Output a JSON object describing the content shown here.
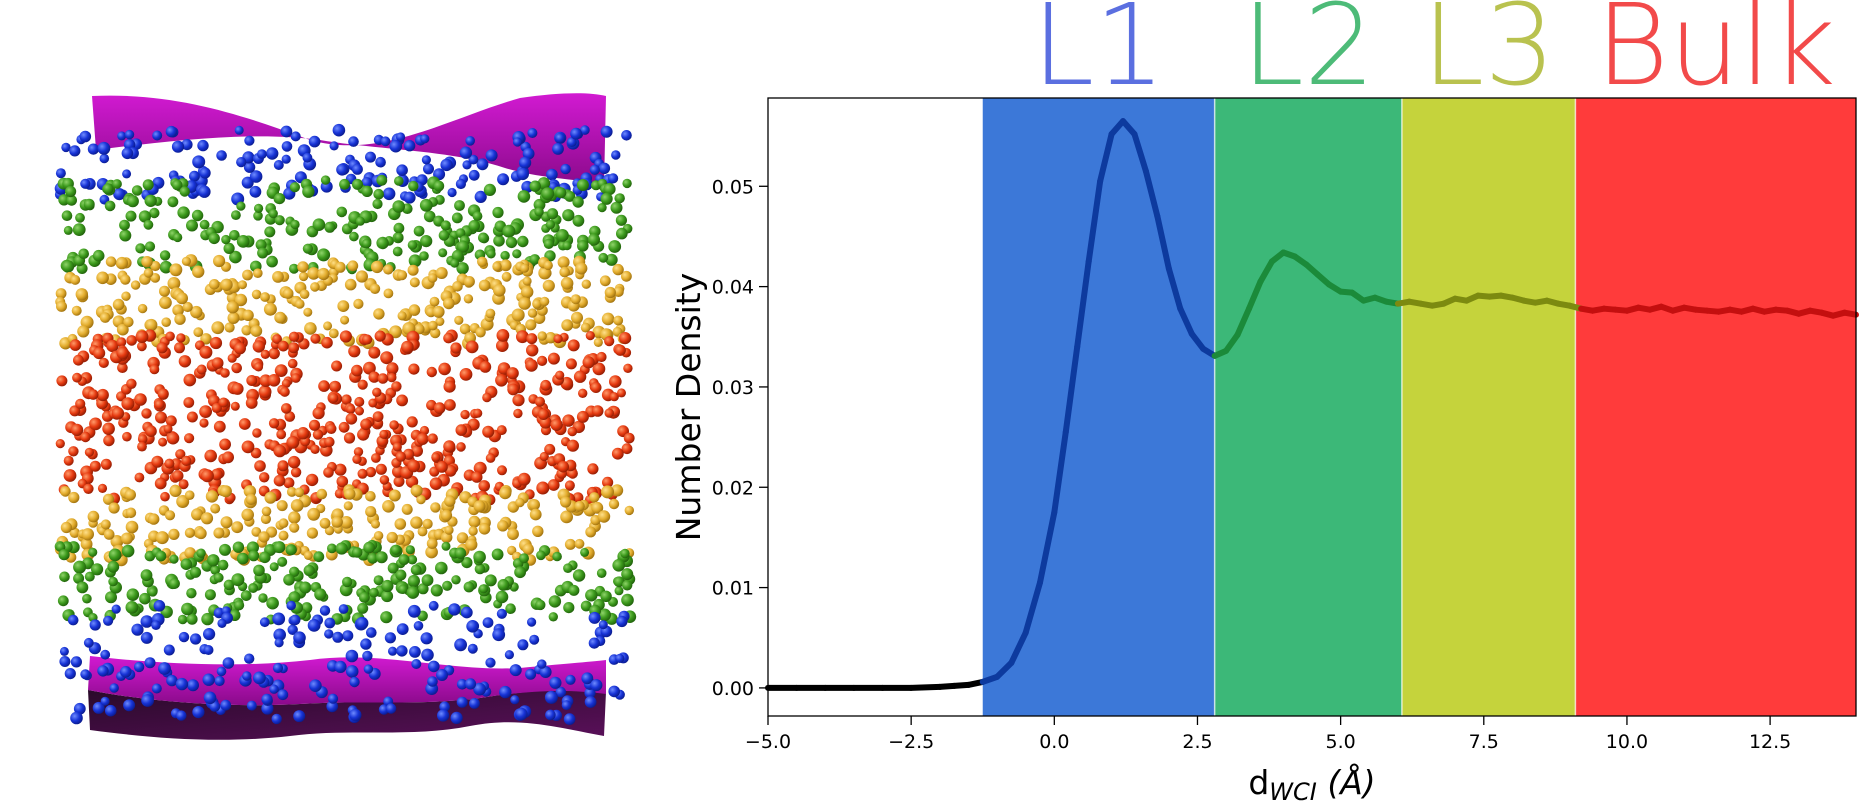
{
  "panel_left": {
    "image": "simulation snapshot of confined molecules: magenta interface surfaces at top and bottom, layers colored blue, green, yellow and red"
  },
  "chart_data": {
    "type": "line",
    "xlabel_main": "d",
    "xlabel_sub": "WCI",
    "xlabel_unit": "(Å)",
    "ylabel": "Number Density",
    "xlim": [
      -5.0,
      14.0
    ],
    "ylim": [
      -0.0028,
      0.0588
    ],
    "xticks": [
      -5.0,
      -2.5,
      0.0,
      2.5,
      5.0,
      7.5,
      10.0,
      12.5
    ],
    "xtick_labels": [
      "−5.0",
      "−2.5",
      "0.0",
      "2.5",
      "5.0",
      "7.5",
      "10.0",
      "12.5"
    ],
    "yticks": [
      0.0,
      0.01,
      0.02,
      0.03,
      0.04,
      0.05
    ],
    "ytick_labels": [
      "0.00",
      "0.01",
      "0.02",
      "0.03",
      "0.04",
      "0.05"
    ],
    "grid": false,
    "regions": [
      {
        "label": "L1",
        "x0": -1.25,
        "x1": 2.8,
        "fill": "#3c78d8",
        "label_color": "#5b6fe0",
        "line_color": "#0d3a9e"
      },
      {
        "label": "L2",
        "x0": 2.8,
        "x1": 6.07,
        "fill": "#3cb878",
        "label_color": "#4dbb78",
        "line_color": "#1b8a3a"
      },
      {
        "label": "L3",
        "x0": 6.07,
        "x1": 9.1,
        "fill": "#c5d33c",
        "label_color": "#b9c24f",
        "line_color": "#7c8a10"
      },
      {
        "label": "Bulk",
        "x0": 9.1,
        "x1": 14.0,
        "fill": "#ff3b3b",
        "label_color": "#f24a4a",
        "line_color": "#c40f0f"
      }
    ],
    "pre_region_line_color": "#000000",
    "series": [
      {
        "x": [
          -5.0,
          -4.5,
          -4.0,
          -3.5,
          -3.0,
          -2.5,
          -2.0,
          -1.75,
          -1.5,
          -1.25,
          -1.0,
          -0.75,
          -0.5,
          -0.25,
          0.0,
          0.2,
          0.4,
          0.6,
          0.8,
          1.0,
          1.2,
          1.4,
          1.6,
          1.8,
          2.0,
          2.2,
          2.4,
          2.6,
          2.8,
          3.0,
          3.2,
          3.4,
          3.6,
          3.8,
          4.0,
          4.2,
          4.4,
          4.6,
          4.8,
          5.0,
          5.2,
          5.4,
          5.6,
          5.8,
          6.0,
          6.2,
          6.4,
          6.6,
          6.8,
          7.0,
          7.2,
          7.4,
          7.6,
          7.8,
          8.0,
          8.2,
          8.4,
          8.6,
          8.8,
          9.0,
          9.2,
          9.4,
          9.6,
          9.8,
          10.0,
          10.2,
          10.4,
          10.6,
          10.8,
          11.0,
          11.2,
          11.4,
          11.6,
          11.8,
          12.0,
          12.2,
          12.4,
          12.6,
          12.8,
          13.0,
          13.2,
          13.4,
          13.6,
          13.8,
          14.0
        ],
        "y": [
          0.0,
          0.0,
          0.0,
          0.0,
          0.0,
          0.0,
          0.0001,
          0.0002,
          0.0003,
          0.0006,
          0.0011,
          0.0025,
          0.0055,
          0.0105,
          0.0175,
          0.0255,
          0.034,
          0.0425,
          0.0505,
          0.0552,
          0.0565,
          0.0552,
          0.0515,
          0.047,
          0.0418,
          0.0378,
          0.0353,
          0.0338,
          0.0331,
          0.0336,
          0.0352,
          0.0378,
          0.0405,
          0.0425,
          0.0434,
          0.043,
          0.0422,
          0.0412,
          0.0402,
          0.0395,
          0.0394,
          0.0386,
          0.0389,
          0.0385,
          0.0383,
          0.0385,
          0.0383,
          0.0381,
          0.0383,
          0.0388,
          0.0386,
          0.0391,
          0.039,
          0.0391,
          0.0389,
          0.0386,
          0.0384,
          0.0386,
          0.0383,
          0.0381,
          0.0378,
          0.0376,
          0.0378,
          0.0377,
          0.0376,
          0.0379,
          0.0377,
          0.038,
          0.0376,
          0.0379,
          0.0377,
          0.0376,
          0.0375,
          0.0377,
          0.0375,
          0.0378,
          0.0375,
          0.0377,
          0.0376,
          0.0373,
          0.0376,
          0.0374,
          0.0371,
          0.0374,
          0.0372
        ]
      }
    ]
  }
}
